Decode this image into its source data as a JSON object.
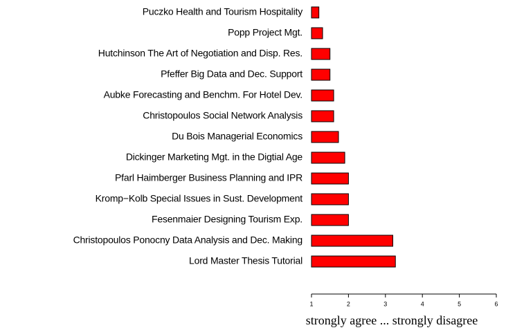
{
  "chart_data": {
    "type": "barh",
    "categories": [
      "Puczko  Health and Tourism Hospitality",
      "Popp  Project Mgt.",
      "Hutchinson  The Art of Negotiation and Disp. Res.",
      "Pfeffer  Big Data and Dec. Support",
      "Aubke  Forecasting and Benchm. For Hotel Dev.",
      "Christopoulos  Social Network Analysis",
      "Du Bois  Managerial Economics",
      "Dickinger  Marketing Mgt. in the Digtial Age",
      "Pfarl Haimberger Business Planning and IPR",
      "Kromp−Kolb  Special Issues in Sust. Development",
      "Fesenmaier  Designing Tourism Exp.",
      "Christopoulos Ponocny Data Analysis and Dec. Making",
      "Lord  Master Thesis Tutorial"
    ],
    "values": [
      1.2,
      1.3,
      1.5,
      1.5,
      1.6,
      1.6,
      1.73,
      1.9,
      2.0,
      2.0,
      2.0,
      3.2,
      3.27
    ],
    "color": "#ff0000",
    "xlabel": "strongly agree ... strongly disagree",
    "xlim": [
      1,
      6
    ],
    "xticks": [
      1,
      2,
      3,
      4,
      5,
      6
    ]
  }
}
